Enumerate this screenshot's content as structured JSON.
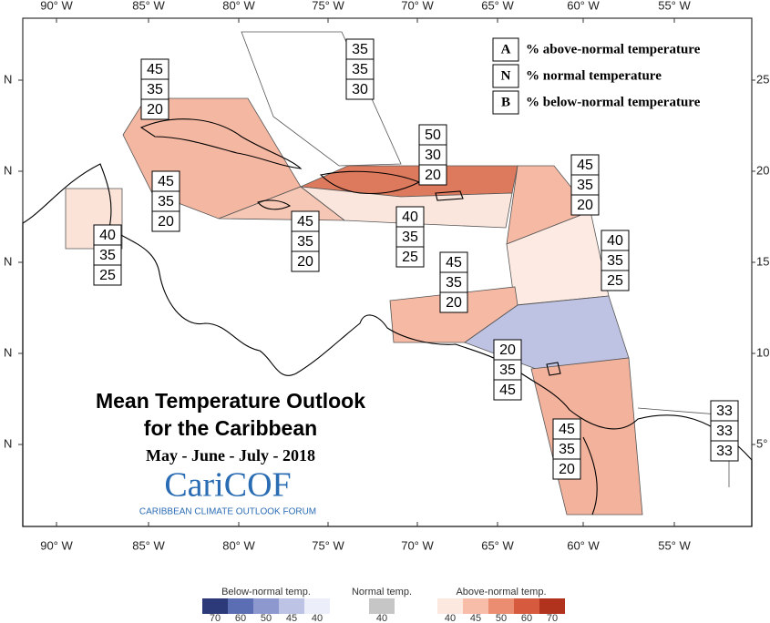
{
  "map": {
    "title_lines": [
      "Mean Temperature Outlook",
      "for the Caribbean"
    ],
    "subtitle": "May - June - July - 2018",
    "logo": "CariCOF",
    "logo_caption": "CARIBBEAN CLIMATE OUTLOOK FORUM",
    "lon_labels": [
      "90° W",
      "85° W",
      "80° W",
      "75° W",
      "70° W",
      "65° W",
      "60° W",
      "55° W"
    ],
    "lat_labels_left": [
      "N",
      "N",
      "N",
      "N",
      "N"
    ],
    "lat_labels_right": [
      "25°",
      "20°",
      "15°",
      "10°",
      "5°"
    ]
  },
  "key": [
    {
      "letter": "A",
      "text": "% above-normal temperature"
    },
    {
      "letter": "N",
      "text": "% normal temperature"
    },
    {
      "letter": "B",
      "text": "% below-normal temperature"
    }
  ],
  "regions": [
    {
      "values": [
        45,
        35,
        20
      ]
    },
    {
      "values": [
        35,
        35,
        30
      ]
    },
    {
      "values": [
        50,
        30,
        20
      ]
    },
    {
      "values": [
        45,
        35,
        20
      ]
    },
    {
      "values": [
        40,
        35,
        25
      ]
    },
    {
      "values": [
        45,
        35,
        20
      ]
    },
    {
      "values": [
        40,
        35,
        25
      ]
    },
    {
      "values": [
        45,
        35,
        20
      ]
    },
    {
      "values": [
        40,
        35,
        25
      ]
    },
    {
      "values": [
        45,
        35,
        20
      ]
    },
    {
      "values": [
        20,
        35,
        45
      ]
    },
    {
      "values": [
        45,
        35,
        20
      ]
    },
    {
      "values": [
        33,
        33,
        33
      ]
    }
  ],
  "color_scale": {
    "below": {
      "label": "Below-normal temp.",
      "ticks": [
        70,
        60,
        50,
        45,
        40
      ],
      "colors": [
        "#2c3a7a",
        "#5b6db3",
        "#8d98cf",
        "#bcc3e5",
        "#eceefa"
      ]
    },
    "normal": {
      "label": "Normal temp.",
      "ticks": [
        40
      ],
      "colors": [
        "#c6c6c6"
      ]
    },
    "above": {
      "label": "Above-normal temp.",
      "ticks": [
        40,
        45,
        50,
        60,
        70
      ],
      "colors": [
        "#fde8e0",
        "#f7bda9",
        "#eb8d70",
        "#d65a3d",
        "#b2331d"
      ]
    }
  }
}
